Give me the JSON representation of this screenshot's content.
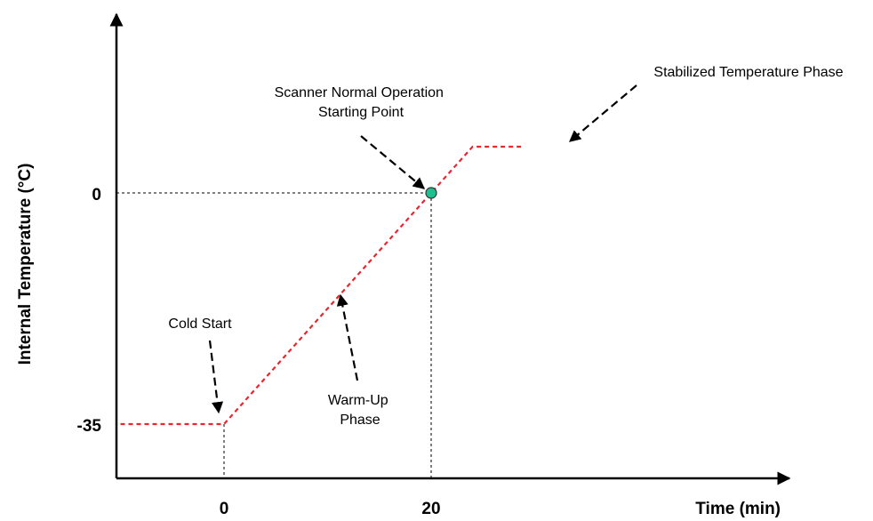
{
  "chart_data": {
    "type": "line",
    "xlabel": "Time (min)",
    "ylabel": "Internal Temperature (°C)",
    "xlim": [
      -10,
      40
    ],
    "ylim": [
      -45,
      20
    ],
    "x_ticks": [
      {
        "value": 0,
        "label": "0"
      },
      {
        "value": 20,
        "label": "20"
      }
    ],
    "y_ticks": [
      {
        "value": 0,
        "label": "0"
      },
      {
        "value": -35,
        "label": "-35"
      }
    ],
    "series": [
      {
        "x": [
          -10,
          0,
          20,
          24,
          29
        ],
        "y": [
          -35,
          -35,
          0,
          7,
          7
        ],
        "color": "#e8262b",
        "style": "dashed"
      }
    ],
    "marker": {
      "x": 20,
      "y": 0,
      "color": "#1fbf8f"
    },
    "annotations": [
      {
        "id": "cold-start",
        "lines": [
          "Cold Start"
        ]
      },
      {
        "id": "warm-up",
        "lines": [
          "Warm-Up",
          "Phase"
        ]
      },
      {
        "id": "normal-operation",
        "lines": [
          "Scanner Normal Operation",
          "Starting Point"
        ]
      },
      {
        "id": "stabilized",
        "lines": [
          "Stabilized Temperature Phase"
        ]
      }
    ]
  }
}
